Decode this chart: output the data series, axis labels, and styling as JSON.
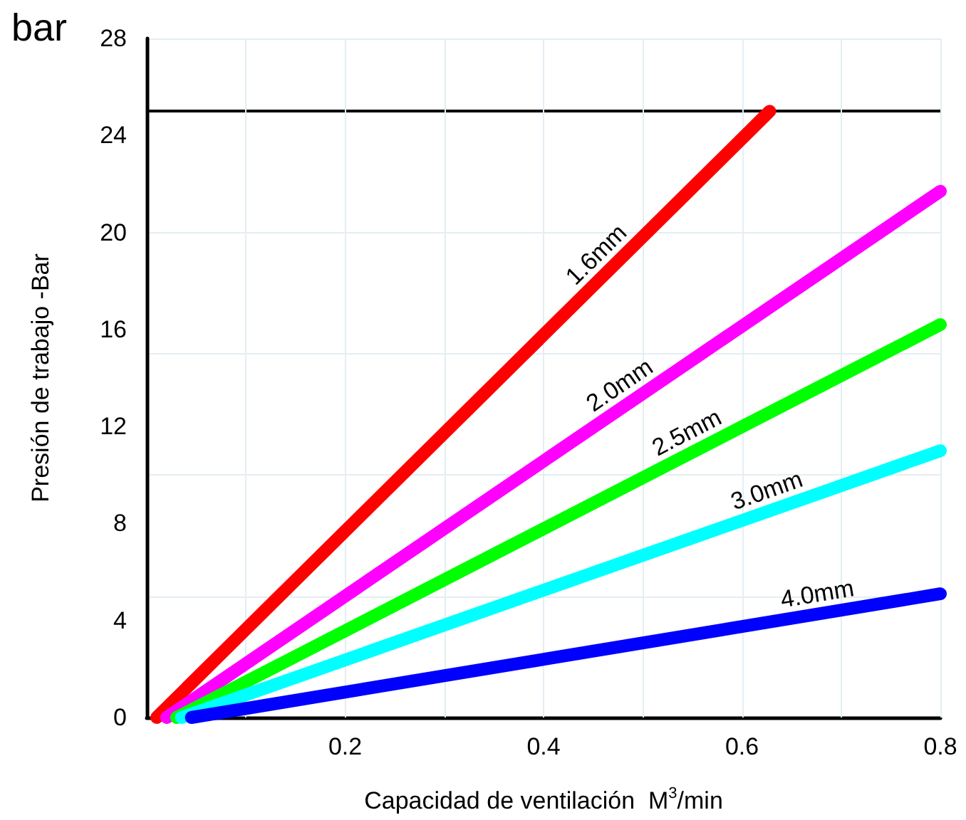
{
  "chart_data": {
    "type": "line",
    "xlabel": "Capacidad de ventilación  M$^{3}$/min",
    "ylabel": "Presión de trabajo -Bar",
    "annotations": [
      "bar"
    ],
    "series": [
      {
        "name": "1.6mm",
        "color": "#ff0000",
        "x": [
          0.01,
          0.628
        ],
        "values": [
          0,
          25
        ]
      },
      {
        "name": "2.0mm",
        "color": "#ff00ff",
        "x": [
          0.02,
          0.8
        ],
        "values": [
          0,
          21.7
        ]
      },
      {
        "name": "2.5mm",
        "color": "#00ff00",
        "x": [
          0.03,
          0.8
        ],
        "values": [
          0,
          16.2
        ]
      },
      {
        "name": "3.0mm",
        "color": "#00ffff",
        "x": [
          0.035,
          0.8
        ],
        "values": [
          0,
          11.0
        ]
      },
      {
        "name": "4.0mm",
        "color": "#0000ff",
        "x": [
          0.045,
          0.8
        ],
        "values": [
          0,
          5.1
        ]
      }
    ],
    "xlim": [
      0,
      0.8
    ],
    "xticks": [
      {
        "value": 0,
        "label": null
      },
      {
        "value": 0.1,
        "label": null
      },
      0.2,
      {
        "value": 0.3,
        "label": null
      },
      0.4,
      {
        "value": 0.5,
        "label": null
      },
      0.6,
      {
        "value": 0.7,
        "label": null
      },
      0.8
    ],
    "ylim": [
      0,
      28
    ],
    "yticks": [
      0,
      4,
      8,
      12,
      16,
      20,
      24,
      28
    ],
    "ref_lines": [
      {
        "axis": "y",
        "value": 25,
        "color": "#000000"
      }
    ],
    "grid": true,
    "line_style": "solid"
  }
}
